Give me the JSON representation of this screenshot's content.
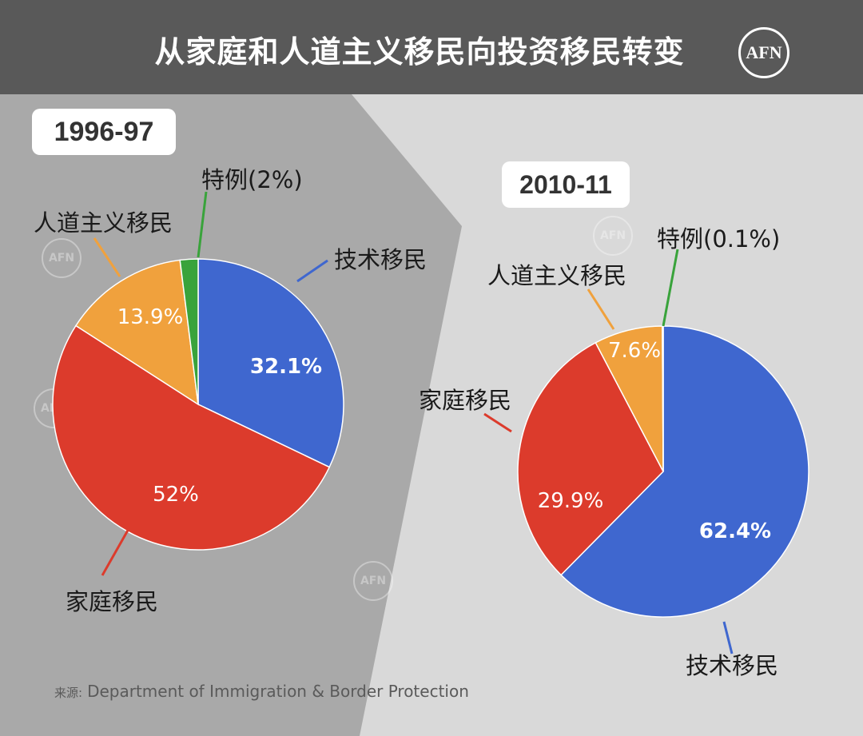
{
  "header": {
    "title": "从家庭和人道主义移民向投资移民转变",
    "logo": "AFN"
  },
  "colors": {
    "skilled": "#3f67cf",
    "family": "#dc3b2c",
    "humanitarian": "#f0a13d",
    "special": "#39a33b",
    "header_bg": "#595959",
    "left_panel": "#a9a9a9",
    "right_panel": "#d9d9d9"
  },
  "chart_data": [
    {
      "type": "pie",
      "title": "1996-97",
      "start_angle_deg": 0,
      "direction": "clockwise",
      "slices": [
        {
          "label": "技术移民",
          "value": 32.1,
          "display": "32.1%",
          "color": "#3f67cf"
        },
        {
          "label": "家庭移民",
          "value": 52,
          "display": "52%",
          "color": "#dc3b2c"
        },
        {
          "label": "人道主义移民",
          "value": 13.9,
          "display": "13.9%",
          "color": "#f0a13d"
        },
        {
          "label": "特例(2%)",
          "value": 2,
          "display": "",
          "color": "#39a33b"
        }
      ]
    },
    {
      "type": "pie",
      "title": "2010-11",
      "start_angle_deg": 0,
      "direction": "clockwise",
      "slices": [
        {
          "label": "技术移民",
          "value": 62.4,
          "display": "62.4%",
          "color": "#3f67cf"
        },
        {
          "label": "家庭移民",
          "value": 29.9,
          "display": "29.9%",
          "color": "#dc3b2c"
        },
        {
          "label": "人道主义移民",
          "value": 7.6,
          "display": "7.6%",
          "color": "#f0a13d"
        },
        {
          "label": "特例(0.1%)",
          "value": 0.1,
          "display": "",
          "color": "#39a33b"
        }
      ]
    }
  ],
  "source": {
    "label": "来源:",
    "text": "Department of Immigration & Border Protection"
  }
}
